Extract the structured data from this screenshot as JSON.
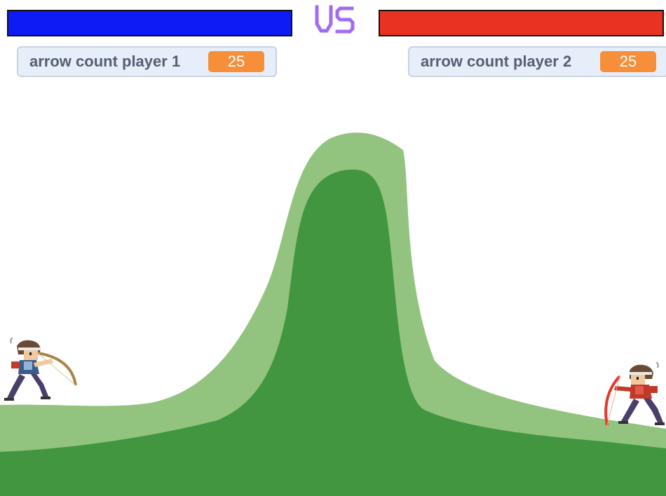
{
  "hud": {
    "vs_text": "VS",
    "player1": {
      "health_color": "#0f1bf5",
      "health_fraction": 1.0
    },
    "player2": {
      "health_color": "#ea3223",
      "health_fraction": 1.0
    }
  },
  "monitors": {
    "p1": {
      "label": "arrow count player 1",
      "value": "25"
    },
    "p2": {
      "label": "arrow count player 2",
      "value": "25"
    }
  },
  "colors": {
    "vs": "#a26cf2",
    "hill_light": "#92c47f",
    "hill_dark": "#429640",
    "monitor_value": "#f68e3a",
    "bow_p1": "#a88548",
    "bow_p2": "#e23a2a"
  },
  "sprites": {
    "player1": {
      "icon": "archer-blue-icon",
      "facing": "right"
    },
    "player2": {
      "icon": "archer-red-icon",
      "facing": "left"
    }
  }
}
